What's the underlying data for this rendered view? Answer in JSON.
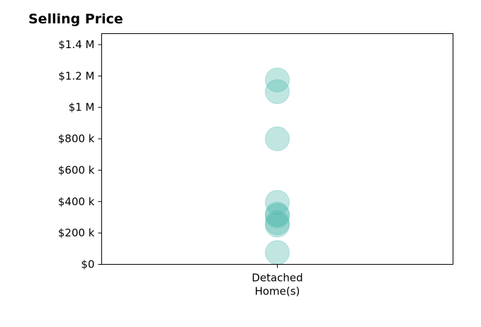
{
  "chart_data": {
    "type": "scatter",
    "title": "Selling Price",
    "xlabel": "",
    "ylabel": "",
    "categories": [
      "Detached Home(s)"
    ],
    "category_label_lines": [
      "Detached",
      "Home(s)"
    ],
    "ylim": [
      0,
      1470000
    ],
    "y_ticks": [
      0,
      200000,
      400000,
      600000,
      800000,
      1000000,
      1200000,
      1400000
    ],
    "y_tick_labels": [
      "$0",
      "$200 k",
      "$400 k",
      "$600 k",
      "$800 k",
      "$1 M",
      "$1.2 M",
      "$1.4 M"
    ],
    "series": [
      {
        "category": "Detached Home(s)",
        "values": [
          1175000,
          1100000,
          800000,
          395000,
          320000,
          310000,
          265000,
          250000,
          75000
        ]
      }
    ],
    "marker_color": "#4db6ac",
    "marker_opacity": 0.35,
    "grid": false,
    "legend": "none"
  }
}
